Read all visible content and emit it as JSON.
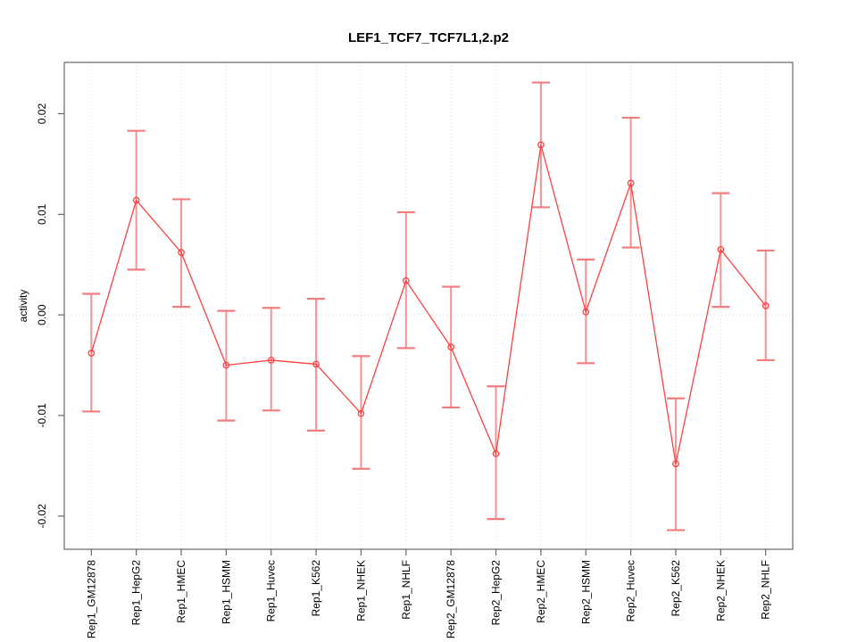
{
  "chart_data": {
    "type": "line",
    "title": "LEF1_TCF7_TCF7L1,2.p2",
    "xlabel": "",
    "ylabel": "activity",
    "ylim": [
      -0.0233,
      0.0251
    ],
    "yticks": [
      -0.02,
      -0.01,
      0,
      0.01,
      0.02
    ],
    "ytick_labels": [
      "-0.02",
      "-0.01",
      "0.00",
      "0.01",
      "0.02"
    ],
    "grid": "dotted vertical gridline at each category; dotted horizontal line at y=0",
    "legend_position": "none",
    "marker": "open-circle",
    "error_bars": true,
    "categories": [
      "Rep1_GM12878",
      "Rep1_HepG2",
      "Rep1_HMEC",
      "Rep1_HSMM",
      "Rep1_Huvec",
      "Rep1_K562",
      "Rep1_NHEK",
      "Rep1_NHLF",
      "Rep2_GM12878",
      "Rep2_HepG2",
      "Rep2_HMEC",
      "Rep2_HSMM",
      "Rep2_Huvec",
      "Rep2_K562",
      "Rep2_NHEK",
      "Rep2_NHLF"
    ],
    "series": [
      {
        "name": "activity",
        "values": [
          -0.0038,
          0.0114,
          0.0062,
          -0.005,
          -0.0045,
          -0.0049,
          -0.0098,
          0.0034,
          -0.0032,
          -0.0138,
          0.0169,
          0.0003,
          0.0131,
          -0.0148,
          0.0065,
          0.0009
        ],
        "ci_low": [
          -0.0096,
          0.0045,
          0.0008,
          -0.0105,
          -0.0095,
          -0.0115,
          -0.0153,
          -0.0033,
          -0.0092,
          -0.0203,
          0.0107,
          -0.0048,
          0.0067,
          -0.0214,
          0.0008,
          -0.0045
        ],
        "ci_high": [
          0.0021,
          0.0183,
          0.0115,
          0.0004,
          0.0007,
          0.0016,
          -0.0041,
          0.0102,
          0.0028,
          -0.0071,
          0.0231,
          0.0055,
          0.0196,
          -0.0083,
          0.0121,
          0.0064
        ]
      }
    ],
    "colors": {
      "line": "#ff4040",
      "marker": "#ff4040",
      "error_bar": "#f69292",
      "error_cap": "#f07e7e",
      "grid": "#dcdcdc",
      "axis": "#666666",
      "text": "#000000",
      "background": "#ffffff"
    }
  }
}
